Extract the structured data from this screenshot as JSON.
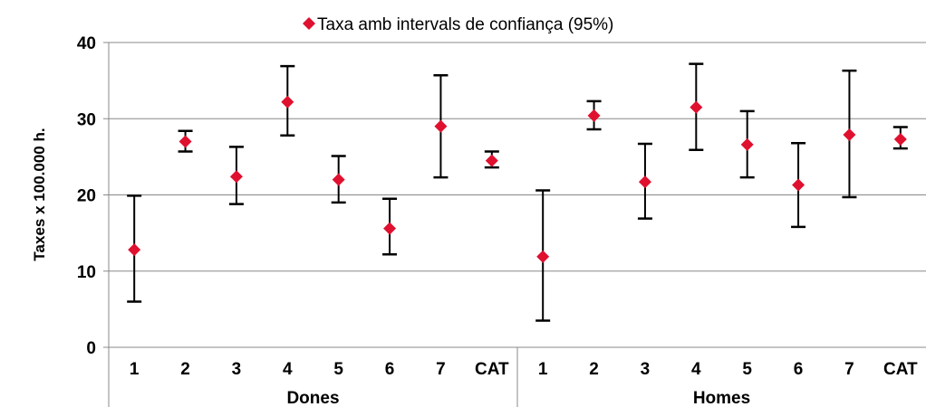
{
  "chart_data": {
    "type": "scatter",
    "ylabel": "Taxes x 100.000 h.",
    "ylim": [
      0,
      40
    ],
    "yticks": [
      0,
      10,
      20,
      30,
      40
    ],
    "grid": true,
    "legend": {
      "placement": "top-center",
      "label": "Taxa amb intervals de confiança (95%)"
    },
    "marker_color": "#e0102f",
    "groups": [
      {
        "name": "Dones",
        "categories": [
          "1",
          "2",
          "3",
          "4",
          "5",
          "6",
          "7",
          "CAT"
        ],
        "values": [
          12.8,
          27.0,
          22.4,
          32.2,
          22.0,
          15.6,
          29.0,
          24.5
        ],
        "lower": [
          6.0,
          25.7,
          18.8,
          27.8,
          19.0,
          12.2,
          22.3,
          23.6
        ],
        "upper": [
          19.9,
          28.4,
          26.3,
          36.9,
          25.1,
          19.5,
          35.7,
          25.7
        ]
      },
      {
        "name": "Homes",
        "categories": [
          "1",
          "2",
          "3",
          "4",
          "5",
          "6",
          "7",
          "CAT"
        ],
        "values": [
          11.9,
          30.4,
          21.7,
          31.5,
          26.6,
          21.3,
          27.9,
          27.3
        ],
        "lower": [
          3.5,
          28.6,
          16.9,
          25.9,
          22.3,
          15.8,
          19.7,
          26.1
        ],
        "upper": [
          20.6,
          32.3,
          26.7,
          37.2,
          31.0,
          26.8,
          36.3,
          28.9
        ]
      }
    ]
  }
}
